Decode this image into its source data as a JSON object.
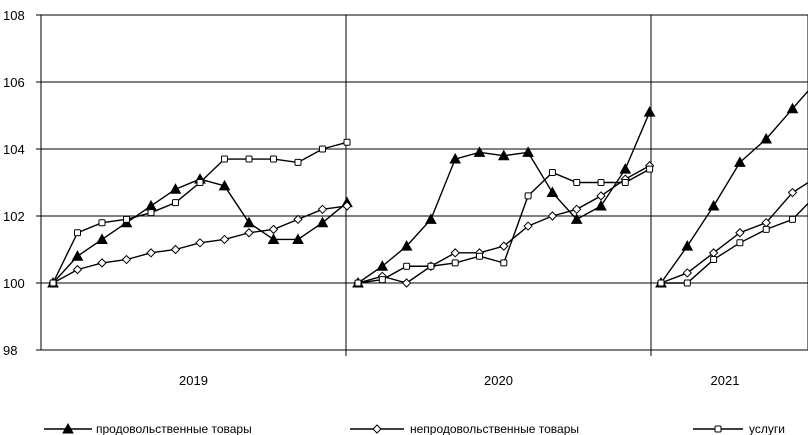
{
  "chart_data": {
    "type": "line",
    "ylim": [
      98,
      108
    ],
    "y_ticks": [
      "98",
      "100",
      "102",
      "104",
      "106",
      "108"
    ],
    "grid": true,
    "legend_placement": "bottom",
    "years": [
      {
        "label": "2019",
        "months": 12
      },
      {
        "label": "2020",
        "months": 12
      },
      {
        "label": "2021",
        "months": 6
      }
    ],
    "series": [
      {
        "name": "продовольственные товары",
        "marker": "triangle",
        "values": [
          [
            100,
            100.8,
            101.3,
            101.8,
            102.3,
            102.8,
            103.1,
            102.9,
            101.8,
            101.3,
            101.3,
            101.8,
            102.4
          ],
          [
            100,
            100.5,
            101.1,
            101.9,
            103.7,
            103.9,
            103.8,
            103.9,
            102.7,
            101.9,
            102.3,
            103.4,
            105.1
          ],
          [
            100,
            101.1,
            102.3,
            103.6,
            104.3,
            105.2,
            106.1
          ]
        ]
      },
      {
        "name": "непродовольственные товары",
        "marker": "diamond",
        "values": [
          [
            100,
            100.4,
            100.6,
            100.7,
            100.9,
            101.0,
            101.2,
            101.3,
            101.5,
            101.6,
            101.9,
            102.2,
            102.3
          ],
          [
            100,
            100.2,
            100.0,
            100.5,
            100.9,
            100.9,
            101.1,
            101.7,
            102.0,
            102.2,
            102.6,
            103.1,
            103.5
          ],
          [
            100,
            100.3,
            100.9,
            101.5,
            101.8,
            102.7,
            103.2
          ]
        ]
      },
      {
        "name": "услуги",
        "marker": "square",
        "values": [
          [
            100,
            101.5,
            101.8,
            101.9,
            102.1,
            102.4,
            103.0,
            103.7,
            103.7,
            103.7,
            103.6,
            104.0,
            104.2
          ],
          [
            100,
            100.1,
            100.5,
            100.5,
            100.6,
            100.8,
            100.6,
            102.6,
            103.3,
            103.0,
            103.0,
            103.0,
            103.4
          ],
          [
            100,
            100.0,
            100.7,
            101.2,
            101.6,
            101.9,
            102.7
          ]
        ]
      }
    ]
  }
}
